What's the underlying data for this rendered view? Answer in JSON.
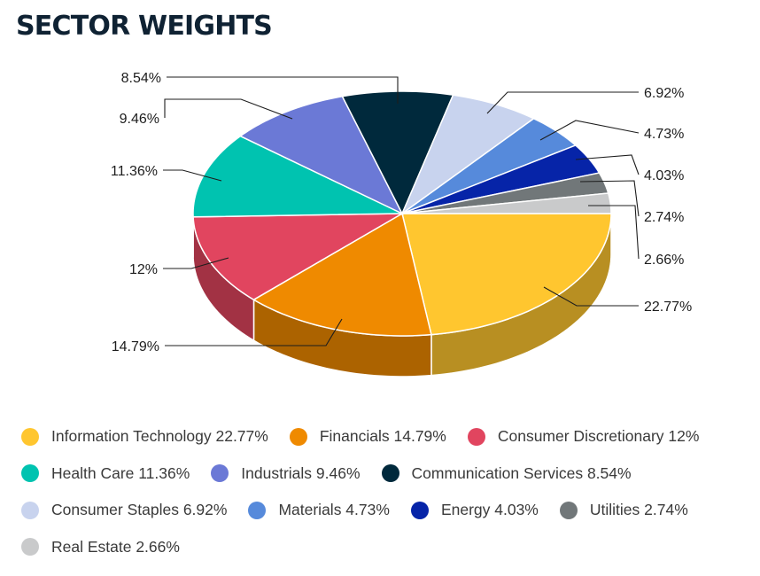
{
  "title": "SECTOR WEIGHTS",
  "chart_data": {
    "type": "pie",
    "style": "3d",
    "legend_position": "bottom",
    "slices": [
      {
        "name": "Information Technology",
        "value": 22.77,
        "label": "22.77%",
        "color": "#FFC62F"
      },
      {
        "name": "Financials",
        "value": 14.79,
        "label": "14.79%",
        "color": "#EF8A00"
      },
      {
        "name": "Consumer Discretionary",
        "value": 12,
        "label": "12%",
        "color": "#E1455F"
      },
      {
        "name": "Health Care",
        "value": 11.36,
        "label": "11.36%",
        "color": "#00C3B0"
      },
      {
        "name": "Industrials",
        "value": 9.46,
        "label": "9.46%",
        "color": "#6B79D6"
      },
      {
        "name": "Communication Services",
        "value": 8.54,
        "label": "8.54%",
        "color": "#00293C"
      },
      {
        "name": "Consumer Staples",
        "value": 6.92,
        "label": "6.92%",
        "color": "#C8D3EE"
      },
      {
        "name": "Materials",
        "value": 4.73,
        "label": "4.73%",
        "color": "#568ADB"
      },
      {
        "name": "Energy",
        "value": 4.03,
        "label": "4.03%",
        "color": "#0624A8"
      },
      {
        "name": "Utilities",
        "value": 2.74,
        "label": "2.74%",
        "color": "#717779"
      },
      {
        "name": "Real Estate",
        "value": 2.66,
        "label": "2.66%",
        "color": "#C9CACB"
      }
    ]
  },
  "legend": [
    [
      {
        "label": "Information Technology 22.77%",
        "color": "#FFC62F"
      },
      {
        "label": "Financials 14.79%",
        "color": "#EF8A00"
      },
      {
        "label": "Consumer Discretionary 12%",
        "color": "#E1455F"
      }
    ],
    [
      {
        "label": "Health Care 11.36%",
        "color": "#00C3B0"
      },
      {
        "label": "Industrials 9.46%",
        "color": "#6B79D6"
      },
      {
        "label": "Communication Services 8.54%",
        "color": "#00293C"
      }
    ],
    [
      {
        "label": "Consumer Staples 6.92%",
        "color": "#C8D3EE"
      },
      {
        "label": "Materials 4.73%",
        "color": "#568ADB"
      },
      {
        "label": "Energy 4.03%",
        "color": "#0624A8"
      },
      {
        "label": "Utilities 2.74%",
        "color": "#717779"
      }
    ],
    [
      {
        "label": "Real Estate 2.66%",
        "color": "#C9CACB"
      }
    ]
  ]
}
